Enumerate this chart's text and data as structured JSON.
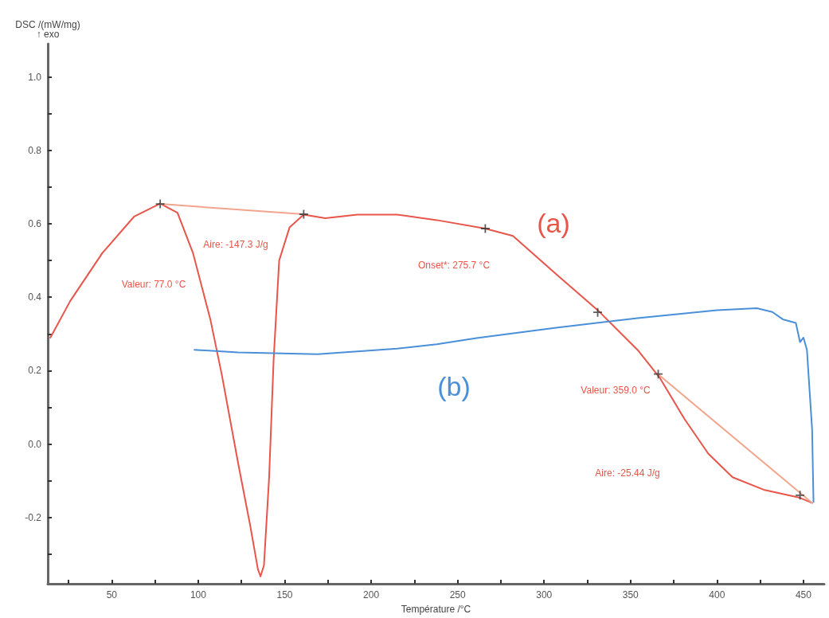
{
  "chart_data": {
    "type": "line",
    "xlabel": "Température /°C",
    "ylabel": "DSC /(mW/mg)\n↑ exo",
    "xlim": [
      13,
      462
    ],
    "ylim": [
      -0.38,
      1.09
    ],
    "xticks": [
      {
        "value": 25,
        "label": null
      },
      50,
      {
        "value": 75,
        "label": null
      },
      100,
      {
        "value": 125,
        "label": null
      },
      150,
      {
        "value": 175,
        "label": null
      },
      200,
      {
        "value": 225,
        "label": null
      },
      250,
      {
        "value": 275,
        "label": null
      },
      300,
      {
        "value": 325,
        "label": null
      },
      350,
      {
        "value": 375,
        "label": null
      },
      400,
      {
        "value": 425,
        "label": null
      },
      450
    ],
    "yticks": [
      {
        "value": -0.3,
        "label": null
      },
      -0.2,
      {
        "value": -0.1,
        "label": null
      },
      {
        "value": 0,
        "label": "0.0"
      },
      {
        "value": 0.1,
        "label": null
      },
      0.2,
      {
        "value": 0.3,
        "label": null
      },
      0.4,
      {
        "value": 0.5,
        "label": null
      },
      0.6,
      {
        "value": 0.7,
        "label": null
      },
      0.8,
      {
        "value": 0.9,
        "label": null
      },
      {
        "value": 1,
        "label": "1.0"
      }
    ],
    "grid": false,
    "legend": false,
    "marker": "none",
    "line_style": "solid",
    "series": [
      {
        "name": "(a)",
        "color": "#e8554a",
        "x": [
          14.5,
          26,
          44.5,
          63,
          78,
          88,
          97,
          107,
          113.6,
          123,
          130,
          134.5,
          136,
          138,
          141,
          143.6,
          146.8,
          152.8,
          161,
          173.5,
          192,
          215,
          238,
          266,
          282,
          307,
          331,
          354,
          367,
          381,
          395,
          409,
          427,
          448,
          455
        ],
        "values": [
          0.29,
          0.39,
          0.52,
          0.62,
          0.655,
          0.63,
          0.52,
          0.34,
          0.19,
          -0.05,
          -0.22,
          -0.34,
          -0.36,
          -0.33,
          -0.09,
          0.23,
          0.5,
          0.59,
          0.625,
          0.615,
          0.625,
          0.625,
          0.61,
          0.587,
          0.567,
          0.463,
          0.365,
          0.257,
          0.18,
          0.07,
          -0.026,
          -0.09,
          -0.124,
          -0.146,
          -0.16
        ]
      },
      {
        "name": "(b)",
        "color": "#4a90d9",
        "x": [
          97.8,
          123,
          169,
          215,
          238,
          261,
          307,
          354,
          400,
          423,
          432,
          438,
          445.6,
          448,
          450,
          452,
          455,
          455.8
        ],
        "values": [
          0.257,
          0.25,
          0.245,
          0.26,
          0.272,
          0.289,
          0.317,
          0.343,
          0.365,
          0.37,
          0.36,
          0.34,
          0.33,
          0.278,
          0.29,
          0.257,
          0.04,
          -0.157
        ]
      },
      {
        "color": "#f2a48c",
        "x": [
          78,
          161
        ],
        "values": [
          0.654,
          0.626
        ]
      },
      {
        "color": "#f2a48c",
        "x": [
          366,
          455
        ],
        "values": [
          0.19,
          -0.16
        ]
      },
      {
        "type": "scatter",
        "marker": "cross",
        "color": "#333333",
        "x": [
          78,
          161,
          266,
          331,
          366,
          448
        ],
        "values": [
          0.654,
          0.626,
          0.587,
          0.359,
          0.191,
          -0.139
        ]
      }
    ],
    "annotations": [
      "Valeur: 77.0 °C",
      "Aire: -147.3 J/g",
      "Onset*: 275.7 °C",
      "Valeur: 359.0 °C",
      "Aire: -25.44 J/g"
    ]
  }
}
